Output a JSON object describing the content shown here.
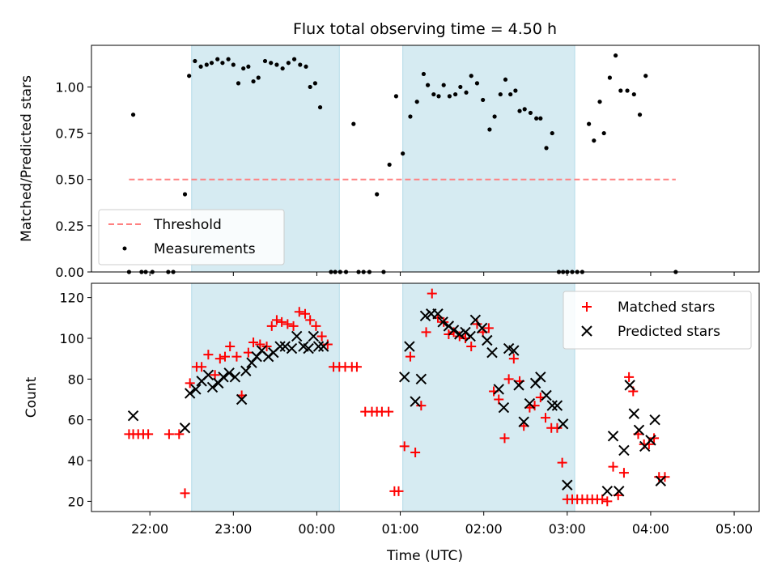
{
  "chart_data": [
    {
      "type": "scatter",
      "title": "Flux total observing time = 4.50 h",
      "xlabel": "",
      "ylabel": "Matched/Predicted stars",
      "ylim": [
        0,
        1.225
      ],
      "x_unit": "hours after 22:00 UTC",
      "xlim": [
        -0.7,
        7.3
      ],
      "x_tick_labels": [
        "22:00",
        "23:00",
        "00:00",
        "01:00",
        "02:00",
        "03:00",
        "04:00",
        "05:00"
      ],
      "y_tick_labels": [
        "0.00",
        "0.25",
        "0.50",
        "0.75",
        "1.00"
      ],
      "y_ticks": [
        0,
        0.25,
        0.5,
        0.75,
        1.0
      ],
      "shaded_intervals": [
        [
          0.5,
          2.27
        ],
        [
          3.03,
          5.09
        ]
      ],
      "threshold": {
        "name": "Threshold",
        "value": 0.5,
        "x_range": [
          -0.25,
          6.3
        ],
        "color": "#ff8080"
      },
      "legend_position": "lower-left",
      "series": [
        {
          "name": "Measurements",
          "color": "#000000",
          "marker": "dot",
          "points": [
            [
              -0.25,
              0
            ],
            [
              -0.2,
              0.85
            ],
            [
              -0.1,
              0
            ],
            [
              -0.05,
              0
            ],
            [
              0.03,
              0
            ],
            [
              0.22,
              0
            ],
            [
              0.28,
              0
            ],
            [
              0.42,
              0.42
            ],
            [
              0.47,
              1.06
            ],
            [
              0.54,
              1.14
            ],
            [
              0.61,
              1.11
            ],
            [
              0.68,
              1.12
            ],
            [
              0.74,
              1.13
            ],
            [
              0.81,
              1.15
            ],
            [
              0.87,
              1.13
            ],
            [
              0.94,
              1.15
            ],
            [
              1.0,
              1.12
            ],
            [
              1.06,
              1.02
            ],
            [
              1.12,
              1.1
            ],
            [
              1.18,
              1.11
            ],
            [
              1.24,
              1.03
            ],
            [
              1.3,
              1.05
            ],
            [
              1.38,
              1.14
            ],
            [
              1.45,
              1.13
            ],
            [
              1.52,
              1.12
            ],
            [
              1.59,
              1.1
            ],
            [
              1.66,
              1.13
            ],
            [
              1.73,
              1.15
            ],
            [
              1.8,
              1.12
            ],
            [
              1.87,
              1.11
            ],
            [
              1.92,
              1.0
            ],
            [
              1.98,
              1.02
            ],
            [
              2.04,
              0.89
            ],
            [
              2.17,
              0
            ],
            [
              2.22,
              0
            ],
            [
              2.28,
              0
            ],
            [
              2.35,
              0
            ],
            [
              2.44,
              0.8
            ],
            [
              2.5,
              0
            ],
            [
              2.56,
              0
            ],
            [
              2.63,
              0
            ],
            [
              2.72,
              0.42
            ],
            [
              2.8,
              0
            ],
            [
              2.87,
              0.58
            ],
            [
              2.95,
              0.95
            ],
            [
              3.03,
              0.64
            ],
            [
              3.12,
              0.84
            ],
            [
              3.2,
              0.92
            ],
            [
              3.28,
              1.07
            ],
            [
              3.33,
              1.01
            ],
            [
              3.4,
              0.96
            ],
            [
              3.46,
              0.95
            ],
            [
              3.52,
              1.01
            ],
            [
              3.59,
              0.95
            ],
            [
              3.66,
              0.96
            ],
            [
              3.72,
              1.0
            ],
            [
              3.79,
              0.97
            ],
            [
              3.85,
              1.06
            ],
            [
              3.92,
              1.02
            ],
            [
              3.99,
              0.93
            ],
            [
              4.07,
              0.77
            ],
            [
              4.13,
              0.84
            ],
            [
              4.2,
              0.96
            ],
            [
              4.26,
              1.04
            ],
            [
              4.32,
              0.96
            ],
            [
              4.38,
              0.98
            ],
            [
              4.43,
              0.87
            ],
            [
              4.49,
              0.88
            ],
            [
              4.56,
              0.86
            ],
            [
              4.63,
              0.83
            ],
            [
              4.68,
              0.83
            ],
            [
              4.75,
              0.67
            ],
            [
              4.82,
              0.75
            ],
            [
              4.9,
              0
            ],
            [
              4.95,
              0
            ],
            [
              5.0,
              0
            ],
            [
              5.06,
              0
            ],
            [
              5.12,
              0
            ],
            [
              5.18,
              0
            ],
            [
              5.26,
              0.8
            ],
            [
              5.32,
              0.71
            ],
            [
              5.39,
              0.92
            ],
            [
              5.44,
              0.75
            ],
            [
              5.51,
              1.05
            ],
            [
              5.58,
              1.17
            ],
            [
              5.64,
              0.98
            ],
            [
              5.72,
              0.98
            ],
            [
              5.8,
              0.96
            ],
            [
              5.87,
              0.85
            ],
            [
              5.94,
              1.06
            ],
            [
              6.3,
              0
            ]
          ]
        }
      ]
    },
    {
      "type": "scatter",
      "title": "",
      "xlabel": "Time (UTC)",
      "ylabel": "Count",
      "ylim": [
        15,
        127
      ],
      "x_unit": "hours after 22:00 UTC",
      "xlim": [
        -0.7,
        7.3
      ],
      "x_tick_labels": [
        "22:00",
        "23:00",
        "00:00",
        "01:00",
        "02:00",
        "03:00",
        "04:00",
        "05:00"
      ],
      "y_tick_labels": [
        "20",
        "40",
        "60",
        "80",
        "100",
        "120"
      ],
      "y_ticks": [
        20,
        40,
        60,
        80,
        100,
        120
      ],
      "shaded_intervals": [
        [
          0.5,
          2.27
        ],
        [
          3.03,
          5.09
        ]
      ],
      "legend_position": "upper-right",
      "series": [
        {
          "name": "Matched stars",
          "color": "#ff0000",
          "marker": "plus",
          "points": [
            [
              -0.25,
              53
            ],
            [
              -0.2,
              53
            ],
            [
              -0.14,
              53
            ],
            [
              -0.08,
              53
            ],
            [
              -0.02,
              53
            ],
            [
              0.23,
              53
            ],
            [
              0.35,
              53
            ],
            [
              0.42,
              24
            ],
            [
              0.48,
              78
            ],
            [
              0.56,
              86
            ],
            [
              0.62,
              86
            ],
            [
              0.7,
              92
            ],
            [
              0.78,
              82
            ],
            [
              0.84,
              90
            ],
            [
              0.9,
              91
            ],
            [
              0.96,
              96
            ],
            [
              1.04,
              91
            ],
            [
              1.1,
              72
            ],
            [
              1.18,
              93
            ],
            [
              1.24,
              98
            ],
            [
              1.32,
              97
            ],
            [
              1.4,
              96
            ],
            [
              1.46,
              106
            ],
            [
              1.52,
              109
            ],
            [
              1.58,
              108
            ],
            [
              1.65,
              107
            ],
            [
              1.72,
              106
            ],
            [
              1.79,
              113
            ],
            [
              1.86,
              112
            ],
            [
              1.92,
              109
            ],
            [
              1.99,
              106
            ],
            [
              2.06,
              101
            ],
            [
              2.13,
              97
            ],
            [
              2.2,
              86
            ],
            [
              2.27,
              86
            ],
            [
              2.34,
              86
            ],
            [
              2.42,
              86
            ],
            [
              2.48,
              86
            ],
            [
              2.58,
              64
            ],
            [
              2.66,
              64
            ],
            [
              2.72,
              64
            ],
            [
              2.78,
              64
            ],
            [
              2.86,
              64
            ],
            [
              2.93,
              25
            ],
            [
              2.98,
              25
            ],
            [
              3.05,
              47
            ],
            [
              3.12,
              91
            ],
            [
              3.18,
              44
            ],
            [
              3.25,
              67
            ],
            [
              3.31,
              103
            ],
            [
              3.38,
              122
            ],
            [
              3.45,
              110
            ],
            [
              3.52,
              108
            ],
            [
              3.58,
              102
            ],
            [
              3.64,
              103
            ],
            [
              3.71,
              101
            ],
            [
              3.78,
              100
            ],
            [
              3.85,
              96
            ],
            [
              3.92,
              107
            ],
            [
              3.99,
              103
            ],
            [
              4.06,
              105
            ],
            [
              4.12,
              74
            ],
            [
              4.18,
              70
            ],
            [
              4.25,
              51
            ],
            [
              4.3,
              80
            ],
            [
              4.36,
              90
            ],
            [
              4.43,
              79
            ],
            [
              4.48,
              57
            ],
            [
              4.55,
              66
            ],
            [
              4.61,
              67
            ],
            [
              4.68,
              71
            ],
            [
              4.74,
              61
            ],
            [
              4.81,
              56
            ],
            [
              4.88,
              56
            ],
            [
              4.94,
              39
            ],
            [
              5.0,
              21
            ],
            [
              5.06,
              21
            ],
            [
              5.12,
              21
            ],
            [
              5.18,
              21
            ],
            [
              5.24,
              21
            ],
            [
              5.3,
              21
            ],
            [
              5.36,
              21
            ],
            [
              5.42,
              21
            ],
            [
              5.48,
              20
            ],
            [
              5.55,
              37
            ],
            [
              5.61,
              23
            ],
            [
              5.68,
              34
            ],
            [
              5.74,
              81
            ],
            [
              5.79,
              74
            ],
            [
              5.85,
              53
            ],
            [
              5.92,
              48
            ],
            [
              5.98,
              48
            ],
            [
              6.04,
              51
            ],
            [
              6.1,
              32
            ],
            [
              6.17,
              32
            ]
          ]
        },
        {
          "name": "Predicted stars",
          "color": "#000000",
          "marker": "x",
          "points": [
            [
              -0.2,
              62
            ],
            [
              0.42,
              56
            ],
            [
              0.48,
              73
            ],
            [
              0.55,
              75
            ],
            [
              0.62,
              79
            ],
            [
              0.7,
              82
            ],
            [
              0.75,
              76
            ],
            [
              0.82,
              78
            ],
            [
              0.88,
              81
            ],
            [
              0.95,
              83
            ],
            [
              1.02,
              81
            ],
            [
              1.1,
              70
            ],
            [
              1.15,
              84
            ],
            [
              1.22,
              88
            ],
            [
              1.28,
              91
            ],
            [
              1.34,
              94
            ],
            [
              1.42,
              91
            ],
            [
              1.48,
              93
            ],
            [
              1.56,
              96
            ],
            [
              1.62,
              96
            ],
            [
              1.7,
              95
            ],
            [
              1.76,
              101
            ],
            [
              1.84,
              96
            ],
            [
              1.9,
              95
            ],
            [
              1.96,
              101
            ],
            [
              2.02,
              96
            ],
            [
              2.08,
              96
            ],
            [
              3.05,
              81
            ],
            [
              3.11,
              96
            ],
            [
              3.18,
              69
            ],
            [
              3.25,
              80
            ],
            [
              3.3,
              111
            ],
            [
              3.37,
              112
            ],
            [
              3.45,
              112
            ],
            [
              3.51,
              108
            ],
            [
              3.58,
              106
            ],
            [
              3.64,
              104
            ],
            [
              3.71,
              102
            ],
            [
              3.78,
              103
            ],
            [
              3.84,
              101
            ],
            [
              3.9,
              109
            ],
            [
              3.98,
              105
            ],
            [
              4.04,
              99
            ],
            [
              4.1,
              93
            ],
            [
              4.18,
              75
            ],
            [
              4.24,
              66
            ],
            [
              4.3,
              95
            ],
            [
              4.36,
              94
            ],
            [
              4.42,
              77
            ],
            [
              4.48,
              59
            ],
            [
              4.55,
              68
            ],
            [
              4.62,
              78
            ],
            [
              4.68,
              81
            ],
            [
              4.75,
              72
            ],
            [
              4.82,
              67
            ],
            [
              4.88,
              67
            ],
            [
              4.95,
              58
            ],
            [
              5.0,
              28
            ],
            [
              5.48,
              25
            ],
            [
              5.55,
              52
            ],
            [
              5.62,
              25
            ],
            [
              5.68,
              45
            ],
            [
              5.75,
              77
            ],
            [
              5.8,
              63
            ],
            [
              5.86,
              55
            ],
            [
              5.93,
              47
            ],
            [
              6.0,
              50
            ],
            [
              6.05,
              60
            ],
            [
              6.12,
              30
            ]
          ]
        }
      ]
    }
  ]
}
